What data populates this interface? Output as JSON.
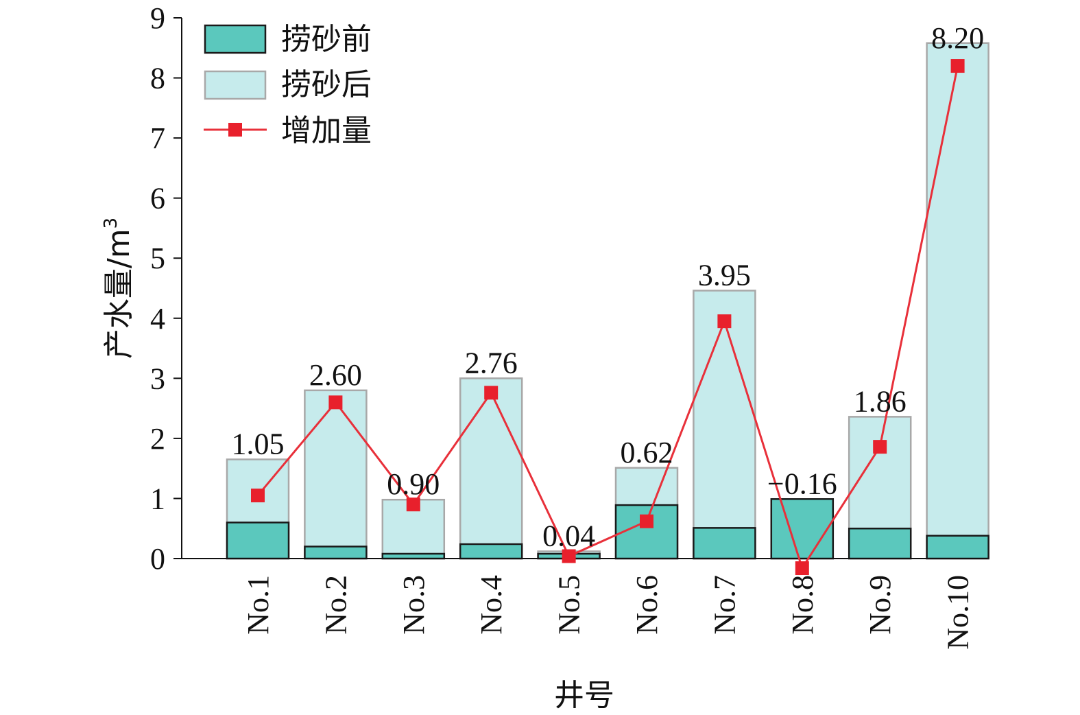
{
  "chart_data": {
    "type": "bar",
    "categories": [
      "No.1",
      "No.2",
      "No.3",
      "No.4",
      "No.5",
      "No.6",
      "No.7",
      "No.8",
      "No.9",
      "No.10"
    ],
    "series": [
      {
        "name": "捞砂前",
        "type": "bar",
        "values": [
          0.6,
          0.2,
          0.08,
          0.24,
          0.08,
          0.89,
          0.51,
          0.99,
          0.5,
          0.38
        ]
      },
      {
        "name": "捞砂后",
        "type": "bar",
        "values": [
          1.65,
          2.8,
          0.98,
          3.0,
          0.12,
          1.51,
          4.46,
          0.83,
          2.36,
          8.58
        ]
      },
      {
        "name": "增加量",
        "type": "line",
        "values": [
          1.05,
          2.6,
          0.9,
          2.76,
          0.04,
          0.62,
          3.95,
          -0.16,
          1.86,
          8.2
        ]
      }
    ],
    "data_labels": [
      "1.05",
      "2.60",
      "0.90",
      "2.76",
      "0.04",
      "0.62",
      "3.95",
      "−0.16",
      "1.86",
      "8.20"
    ],
    "xlabel": "井号",
    "ylabel": "产水量/m",
    "ylabel_sup": "3",
    "ylim": [
      0,
      9
    ],
    "yticks": [
      0,
      1,
      2,
      3,
      4,
      5,
      6,
      7,
      8,
      9
    ],
    "grid": false,
    "legend_position": "top-left",
    "colors": {
      "before_fill": "#5bc8bd",
      "before_stroke": "#1a1a1a",
      "after_fill": "#c6ebec",
      "after_stroke": "#a8a8a8",
      "line": "#e8303a",
      "marker": "#e8202c"
    }
  }
}
